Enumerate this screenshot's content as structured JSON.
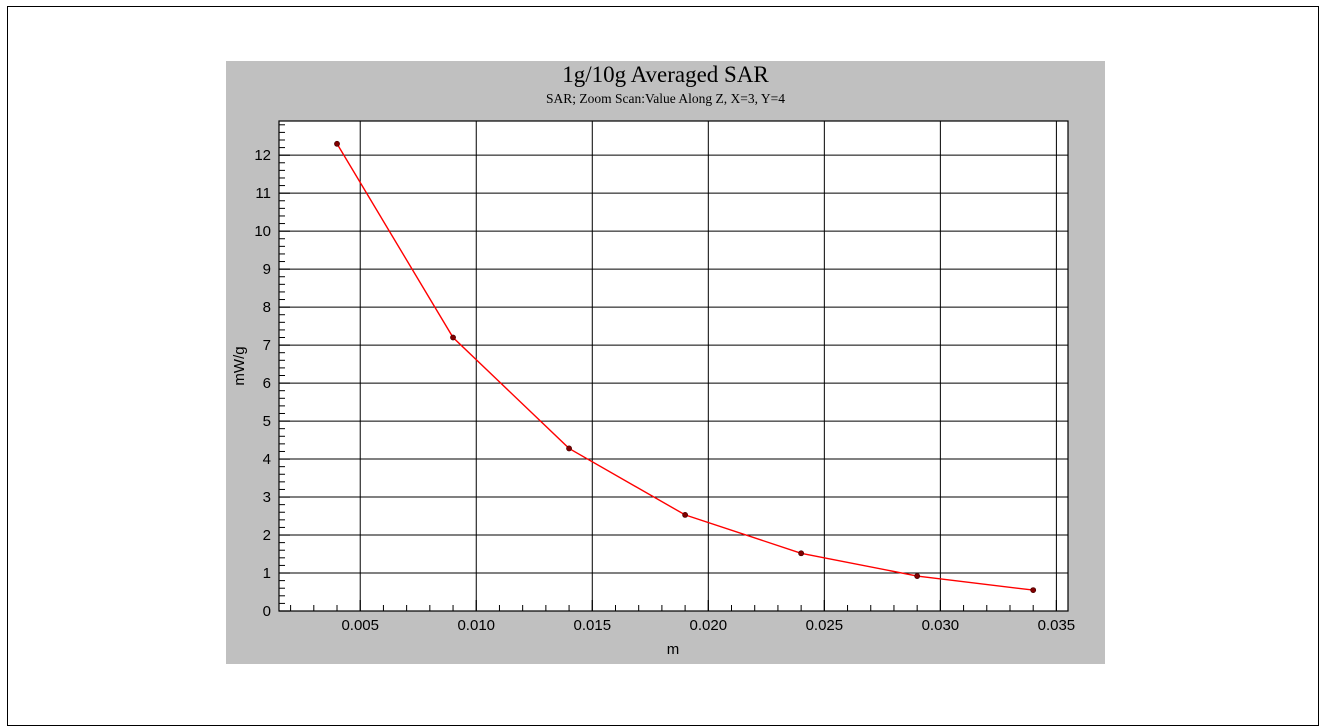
{
  "chart_data": {
    "type": "line",
    "title": "1g/10g Averaged SAR",
    "subtitle": "SAR; Zoom Scan:Value Along Z, X=3, Y=4",
    "xlabel": "m",
    "ylabel": "mW/g",
    "xlim": [
      0.0015,
      0.0355
    ],
    "ylim": [
      0,
      12.9
    ],
    "xticks": [
      "0.005",
      "0.010",
      "0.015",
      "0.020",
      "0.025",
      "0.030",
      "0.035"
    ],
    "yticks": [
      "0",
      "1",
      "2",
      "3",
      "4",
      "5",
      "6",
      "7",
      "8",
      "9",
      "10",
      "11",
      "12"
    ],
    "grid": true,
    "series": [
      {
        "x": [
          0.004,
          0.009,
          0.014,
          0.019,
          0.024,
          0.029,
          0.034
        ],
        "y": [
          12.3,
          7.2,
          4.28,
          2.53,
          1.52,
          0.92,
          0.55
        ]
      }
    ],
    "colors": {
      "line": "#ff0000",
      "marker": "#800000",
      "panel": "#c0c0c0",
      "plot_bg": "#ffffff"
    }
  }
}
